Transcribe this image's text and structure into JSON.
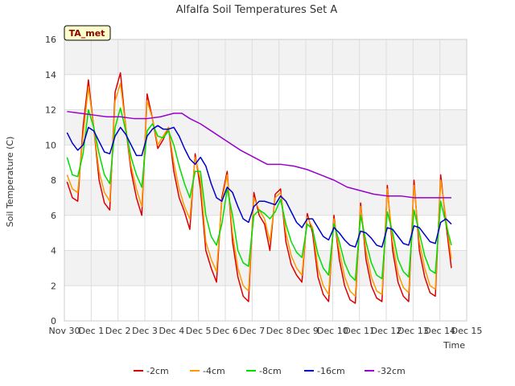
{
  "chart_data": {
    "type": "line",
    "title": "Alfalfa Soil Temperatures Set A",
    "xlabel": "Time",
    "ylabel": "Soil Temperature (C)",
    "badge": "TA_met",
    "ylim": [
      0,
      16
    ],
    "xlim": [
      0,
      15
    ],
    "y_ticks": [
      "0",
      "2",
      "4",
      "6",
      "8",
      "10",
      "12",
      "14",
      "16"
    ],
    "x_ticks": [
      "Nov 30",
      "Dec 1",
      "Dec 2",
      "Dec 3",
      "Dec 4",
      "Dec 5",
      "Dec 6",
      "Dec 7",
      "Dec 8",
      "Dec 9",
      "Dec 10",
      "Dec 11",
      "Dec 12",
      "Dec 13",
      "Dec 14",
      "Dec 15"
    ],
    "grid": true,
    "legend_position": "bottom",
    "series": [
      {
        "name": "-2cm",
        "color": "#dd0000",
        "x": [
          0.0,
          0.2,
          0.4,
          0.6,
          0.8,
          1.0,
          1.2,
          1.4,
          1.6,
          1.8,
          2.0,
          2.2,
          2.4,
          2.6,
          2.8,
          3.0,
          3.2,
          3.4,
          3.6,
          3.8,
          4.0,
          4.2,
          4.4,
          4.6,
          4.8,
          5.0,
          5.2,
          5.4,
          5.6,
          5.8,
          6.0,
          6.2,
          6.4,
          6.6,
          6.8,
          7.0,
          7.2,
          7.4,
          7.6,
          7.8,
          8.0,
          8.2,
          8.4,
          8.6,
          8.8,
          9.0,
          9.2,
          9.4,
          9.6,
          9.8,
          10.0,
          10.2,
          10.4,
          10.6,
          10.8,
          11.0,
          11.2,
          11.4,
          11.6,
          11.8,
          12.0,
          12.2,
          12.4,
          12.6,
          12.8,
          13.0,
          13.2,
          13.4,
          13.6,
          13.8,
          14.0
        ],
        "y": [
          7.9,
          7.0,
          6.8,
          11.0,
          13.7,
          11.0,
          8.0,
          6.7,
          6.3,
          13.0,
          14.1,
          11.0,
          8.5,
          7.0,
          6.0,
          12.9,
          11.5,
          9.8,
          10.3,
          11.0,
          8.5,
          7.0,
          6.2,
          5.2,
          9.5,
          7.5,
          4.0,
          3.0,
          2.2,
          7.0,
          8.5,
          4.5,
          2.5,
          1.4,
          1.1,
          7.3,
          6.0,
          5.5,
          4.0,
          7.2,
          7.5,
          4.5,
          3.2,
          2.6,
          2.2,
          6.1,
          5.0,
          2.5,
          1.5,
          1.1,
          6.0,
          3.5,
          2.0,
          1.2,
          1.0,
          6.7,
          3.5,
          2.0,
          1.3,
          1.1,
          7.7,
          4.0,
          2.2,
          1.4,
          1.1,
          8.0,
          4.0,
          2.5,
          1.6,
          1.4,
          8.3
        ],
        "tail_x": [
          14.2,
          14.4
        ],
        "tail_y": [
          5.5,
          3.0
        ]
      },
      {
        "name": "-4cm",
        "color": "#ff9900",
        "x": [
          0.0,
          0.2,
          0.4,
          0.6,
          0.8,
          1.0,
          1.2,
          1.4,
          1.6,
          1.8,
          2.0,
          2.2,
          2.4,
          2.6,
          2.8,
          3.0,
          3.2,
          3.4,
          3.6,
          3.8,
          4.0,
          4.2,
          4.4,
          4.6,
          4.8,
          5.0,
          5.2,
          5.4,
          5.6,
          5.8,
          6.0,
          6.2,
          6.4,
          6.6,
          6.8,
          7.0,
          7.2,
          7.4,
          7.6,
          7.8,
          8.0,
          8.2,
          8.4,
          8.6,
          8.8,
          9.0,
          9.2,
          9.4,
          9.6,
          9.8,
          10.0,
          10.2,
          10.4,
          10.6,
          10.8,
          11.0,
          11.2,
          11.4,
          11.6,
          11.8,
          12.0,
          12.2,
          12.4,
          12.6,
          12.8,
          13.0,
          13.2,
          13.4,
          13.6,
          13.8,
          14.0
        ],
        "y": [
          8.3,
          7.5,
          7.3,
          10.5,
          13.3,
          11.0,
          8.5,
          7.3,
          6.8,
          12.5,
          13.5,
          11.0,
          8.8,
          7.5,
          6.5,
          12.5,
          11.5,
          10.0,
          10.5,
          11.0,
          9.0,
          7.5,
          6.5,
          5.8,
          9.3,
          8.0,
          4.5,
          3.5,
          2.8,
          6.8,
          8.3,
          5.0,
          3.0,
          2.0,
          1.7,
          7.0,
          6.3,
          5.8,
          4.5,
          7.0,
          7.3,
          5.0,
          3.7,
          3.0,
          2.6,
          5.9,
          5.3,
          3.0,
          2.0,
          1.5,
          5.8,
          4.0,
          2.5,
          1.7,
          1.4,
          6.5,
          4.0,
          2.5,
          1.7,
          1.5,
          7.5,
          4.5,
          2.7,
          1.9,
          1.6,
          7.7,
          4.5,
          3.0,
          2.0,
          1.8,
          8.0
        ],
        "tail_x": [
          14.2,
          14.4
        ],
        "tail_y": [
          5.8,
          3.5
        ]
      },
      {
        "name": "-8cm",
        "color": "#00dd00",
        "x": [
          0.0,
          0.2,
          0.4,
          0.6,
          0.8,
          1.0,
          1.2,
          1.4,
          1.6,
          1.8,
          2.0,
          2.2,
          2.4,
          2.6,
          2.8,
          3.0,
          3.2,
          3.4,
          3.6,
          3.8,
          4.0,
          4.2,
          4.4,
          4.6,
          4.8,
          5.0,
          5.2,
          5.4,
          5.6,
          5.8,
          6.0,
          6.2,
          6.4,
          6.6,
          6.8,
          7.0,
          7.2,
          7.4,
          7.6,
          7.8,
          8.0,
          8.2,
          8.4,
          8.6,
          8.8,
          9.0,
          9.2,
          9.4,
          9.6,
          9.8,
          10.0,
          10.2,
          10.4,
          10.6,
          10.8,
          11.0,
          11.2,
          11.4,
          11.6,
          11.8,
          12.0,
          12.2,
          12.4,
          12.6,
          12.8,
          13.0,
          13.2,
          13.4,
          13.6,
          13.8,
          14.0
        ],
        "y": [
          9.3,
          8.3,
          8.2,
          9.5,
          12.0,
          11.0,
          9.5,
          8.3,
          7.8,
          11.0,
          12.1,
          10.8,
          9.3,
          8.3,
          7.6,
          10.8,
          11.2,
          10.5,
          10.4,
          10.8,
          10.0,
          8.8,
          7.8,
          7.0,
          8.5,
          8.5,
          6.0,
          4.8,
          4.3,
          5.5,
          7.5,
          6.0,
          4.0,
          3.3,
          3.1,
          6.0,
          6.3,
          6.1,
          5.8,
          6.2,
          6.9,
          5.5,
          4.5,
          3.9,
          3.6,
          5.5,
          5.2,
          3.8,
          3.0,
          2.6,
          5.5,
          4.5,
          3.3,
          2.6,
          2.3,
          6.0,
          4.5,
          3.3,
          2.6,
          2.4,
          6.2,
          5.0,
          3.5,
          2.8,
          2.5,
          6.3,
          5.0,
          3.7,
          2.9,
          2.7,
          6.8
        ],
        "tail_x": [
          14.2,
          14.4
        ],
        "tail_y": [
          5.5,
          4.3
        ]
      },
      {
        "name": "-16cm",
        "color": "#0000cc",
        "x": [
          0.0,
          0.2,
          0.4,
          0.6,
          0.8,
          1.0,
          1.2,
          1.4,
          1.6,
          1.8,
          2.0,
          2.2,
          2.4,
          2.6,
          2.8,
          3.0,
          3.2,
          3.4,
          3.6,
          3.8,
          4.0,
          4.2,
          4.4,
          4.6,
          4.8,
          5.0,
          5.2,
          5.4,
          5.6,
          5.8,
          6.0,
          6.2,
          6.4,
          6.6,
          6.8,
          7.0,
          7.2,
          7.4,
          7.6,
          7.8,
          8.0,
          8.2,
          8.4,
          8.6,
          8.8,
          9.0,
          9.2,
          9.4,
          9.6,
          9.8,
          10.0,
          10.2,
          10.4,
          10.6,
          10.8,
          11.0,
          11.2,
          11.4,
          11.6,
          11.8,
          12.0,
          12.2,
          12.4,
          12.6,
          12.8,
          13.0,
          13.2,
          13.4,
          13.6,
          13.8,
          14.0
        ],
        "y": [
          10.7,
          10.1,
          9.7,
          10.0,
          11.0,
          10.8,
          10.2,
          9.6,
          9.5,
          10.5,
          11.0,
          10.6,
          10.0,
          9.4,
          9.4,
          10.5,
          10.9,
          11.1,
          10.9,
          10.9,
          11.0,
          10.5,
          9.8,
          9.2,
          8.9,
          9.3,
          8.8,
          7.8,
          7.0,
          6.8,
          7.6,
          7.3,
          6.5,
          5.8,
          5.6,
          6.5,
          6.8,
          6.8,
          6.7,
          6.6,
          7.1,
          6.8,
          6.2,
          5.6,
          5.3,
          5.8,
          5.8,
          5.3,
          4.8,
          4.6,
          5.3,
          5.0,
          4.6,
          4.3,
          4.2,
          5.1,
          5.0,
          4.7,
          4.3,
          4.2,
          5.3,
          5.2,
          4.8,
          4.4,
          4.3,
          5.4,
          5.3,
          4.9,
          4.5,
          4.4,
          5.6
        ],
        "tail_x": [
          14.2,
          14.4
        ],
        "tail_y": [
          5.8,
          5.5
        ]
      },
      {
        "name": "-32cm",
        "color": "#9900cc",
        "x": [
          0.0,
          0.5,
          1.0,
          1.5,
          2.0,
          2.5,
          3.0,
          3.5,
          4.0,
          4.3,
          4.6,
          5.0,
          5.5,
          6.0,
          6.5,
          7.0,
          7.5,
          8.0,
          8.5,
          9.0,
          9.5,
          10.0,
          10.5,
          11.0,
          11.5,
          12.0,
          12.5,
          13.0,
          13.5,
          14.0,
          14.4
        ],
        "y": [
          11.9,
          11.8,
          11.7,
          11.6,
          11.6,
          11.5,
          11.5,
          11.6,
          11.8,
          11.8,
          11.5,
          11.2,
          10.7,
          10.2,
          9.7,
          9.3,
          8.9,
          8.9,
          8.8,
          8.6,
          8.3,
          8.0,
          7.6,
          7.4,
          7.2,
          7.1,
          7.1,
          7.0,
          7.0,
          7.0,
          7.0
        ]
      }
    ]
  }
}
